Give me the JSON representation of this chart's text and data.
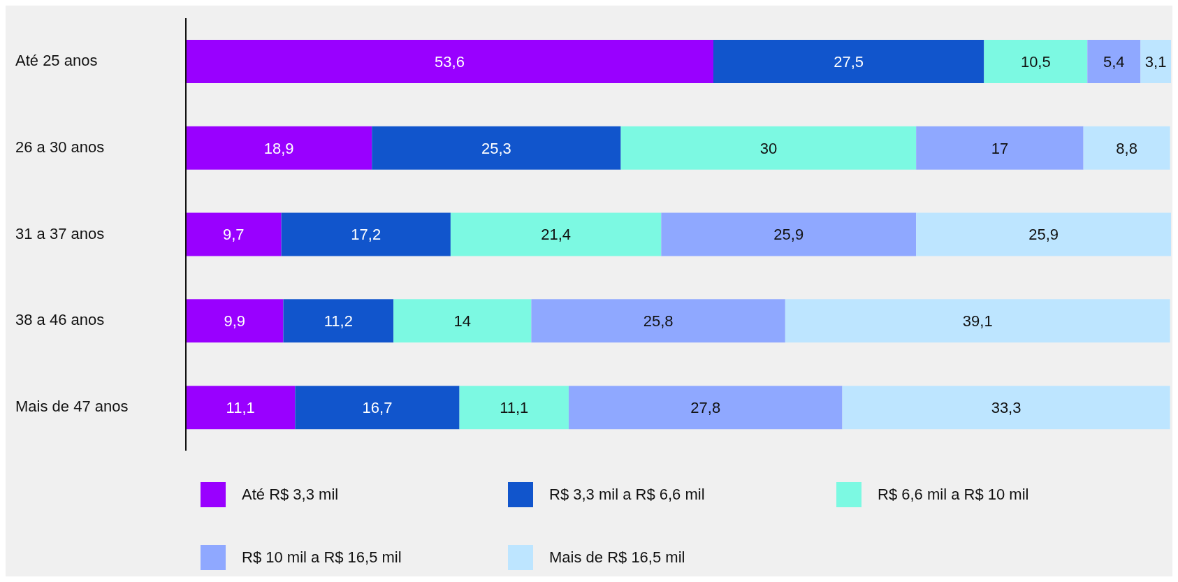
{
  "chart_data": {
    "type": "bar",
    "orientation": "horizontal",
    "stacked": true,
    "legend": "bottom",
    "grid": false,
    "categories": [
      "Até 25 anos",
      "26 a 30 anos",
      "31 a 37 anos",
      "38 a 46 anos",
      "Mais de 47 anos"
    ],
    "series": [
      {
        "name": "Até R$ 3,3 mil",
        "color": "#9900ff",
        "values": [
          53.6,
          18.9,
          9.7,
          9.9,
          11.1
        ],
        "value_labels": [
          "53,6",
          "18,9",
          "9,7",
          "9,9",
          "11,1"
        ]
      },
      {
        "name": "R$ 3,3 mil a R$ 6,6 mil",
        "color": "#1155cc",
        "values": [
          27.5,
          25.3,
          17.2,
          11.2,
          16.7
        ],
        "value_labels": [
          "27,5",
          "25,3",
          "17,2",
          "11,2",
          "16,7"
        ]
      },
      {
        "name": "R$ 6,6 mil a R$ 10 mil",
        "color": "#7cf9e2",
        "values": [
          10.5,
          30,
          21.4,
          14,
          11.1
        ],
        "value_labels": [
          "10,5",
          "30",
          "21,4",
          "14",
          "11,1"
        ]
      },
      {
        "name": "R$ 10 mil a R$ 16,5 mil",
        "color": "#8fa8ff",
        "values": [
          5.4,
          17,
          25.9,
          25.8,
          27.8
        ],
        "value_labels": [
          "5,4",
          "17",
          "25,9",
          "25,8",
          "27,8"
        ]
      },
      {
        "name": "Mais de R$ 16,5 mil",
        "color": "#bde5ff",
        "values": [
          3.1,
          8.8,
          25.9,
          39.1,
          33.3
        ],
        "value_labels": [
          "3,1",
          "8,8",
          "25,9",
          "39,1",
          "33,3"
        ]
      }
    ]
  }
}
